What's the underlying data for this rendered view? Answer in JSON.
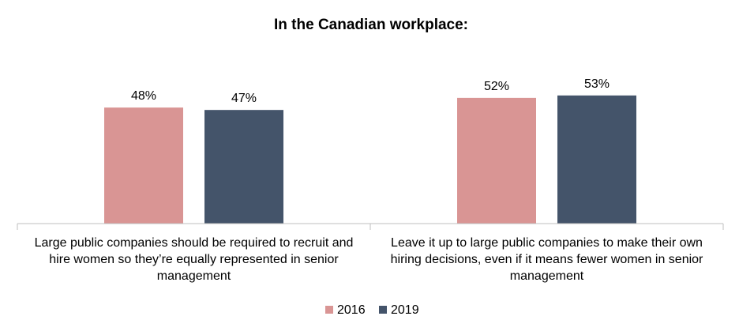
{
  "chart_data": {
    "type": "bar",
    "title": "In the Canadian workplace:",
    "categories": [
      "Large public companies should be required to recruit and hire women so they’re equally represented in senior management",
      "Leave it up to large public companies to make their own hiring decisions, even if it means fewer women in senior management"
    ],
    "category_lines": [
      [
        "Large public companies should be required to recruit and",
        "hire women so they’re equally represented in senior",
        "management"
      ],
      [
        "Leave it up to large public companies to make their own",
        "hiring decisions, even if it means fewer women in senior",
        "management"
      ]
    ],
    "series": [
      {
        "name": "2016",
        "color": "#d99594",
        "values": [
          48,
          52
        ],
        "labels": [
          "48%",
          "52%"
        ]
      },
      {
        "name": "2019",
        "color": "#44546a",
        "values": [
          47,
          53
        ],
        "labels": [
          "47%",
          "53%"
        ]
      }
    ],
    "ylim": [
      0,
      60
    ],
    "grid": false,
    "legend_position": "bottom",
    "xlabel": "",
    "ylabel": ""
  }
}
